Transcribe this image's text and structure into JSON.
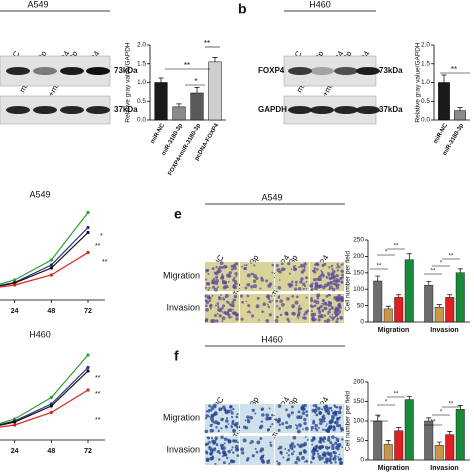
{
  "blots": [
    {
      "cell_line": "A549",
      "lanes": [
        [
          "miR-NC"
        ],
        [
          "miR-3180-3p"
        ],
        [
          "FOXP4",
          "+miR-3180-3p"
        ],
        [
          "FOXP4"
        ]
      ],
      "markers": [
        "73kDa",
        "37kDa"
      ]
    },
    {
      "label": "b",
      "cell_line": "H460",
      "lanes": [
        [
          "miR-NC"
        ],
        [
          "miR-3180-3p"
        ],
        [
          "FOXP4",
          "+miR-3180-3p"
        ],
        [
          "FOXP4"
        ]
      ],
      "proteins": [
        "FOXP4",
        "GAPDH"
      ],
      "markers": [
        "73kDa",
        "37kDa"
      ]
    }
  ],
  "micrographs": [
    {
      "label": "e",
      "cell_line": "A549",
      "columns": [
        [
          "miR-NC"
        ],
        [
          "miR-3180-3p"
        ],
        [
          "FOXP4",
          "+miR-3180-3p"
        ],
        [
          "FOXP4"
        ]
      ],
      "rows": [
        "Migration",
        "Invasion"
      ]
    },
    {
      "label": "f",
      "cell_line": "H460",
      "columns": [
        [
          "miR-NC"
        ],
        [
          "miR-3180-3p"
        ],
        [
          "FOXP4",
          "+miR-3180-3p"
        ],
        [
          "FOXP4"
        ]
      ],
      "rows": [
        "Migration",
        "Invasion"
      ]
    }
  ],
  "chart_data": [
    {
      "type": "bar",
      "ylabel": "Relative gray value/GAPDH",
      "categories": [
        "miR-NC",
        "miR-3180-3p",
        "FOXP4+miR-3180-3p",
        "pcDNA-FOXP4"
      ],
      "values": [
        1.0,
        0.35,
        0.72,
        1.55
      ],
      "errors": [
        0.12,
        0.08,
        0.15,
        0.12
      ],
      "colors": [
        "#1a1a1a",
        "#8a8a8a",
        "#5a5a5a",
        "#cfcfcf"
      ],
      "ylim": [
        0,
        2
      ],
      "yticks": [
        {
          "value": 0,
          "label": "0.0"
        },
        {
          "value": 0.5,
          "label": "0.5"
        },
        {
          "value": 1,
          "label": "1.0"
        },
        {
          "value": 1.5,
          "label": "1.5"
        },
        {
          "value": 2,
          "label": "2.0"
        }
      ],
      "annotations": [
        "**",
        "*",
        "**"
      ]
    },
    {
      "type": "bar",
      "ylabel": "Relative gray value/GAPDH",
      "categories": [
        "miR-NC",
        "miR-3180-3p"
      ],
      "values": [
        1.0,
        0.25
      ],
      "errors": [
        0.2,
        0.08
      ],
      "colors": [
        "#1a1a1a",
        "#8a8a8a"
      ],
      "ylim": [
        0,
        2
      ],
      "yticks": [
        {
          "value": 0,
          "label": "0.0"
        },
        {
          "value": 0.5,
          "label": "0.5"
        },
        {
          "value": 1,
          "label": "1.0"
        },
        {
          "value": 1.5,
          "label": "1.5"
        },
        {
          "value": 2,
          "label": "2.0"
        }
      ],
      "annotations": [
        "**"
      ]
    },
    {
      "type": "line",
      "title": "A549",
      "x": [
        0,
        24,
        48,
        72
      ],
      "xlim": [
        0,
        72
      ],
      "xticks": [
        24,
        48,
        72
      ],
      "ylim": [
        0,
        2
      ],
      "series": [
        {
          "color": "#2ca02c",
          "values": [
            0.2,
            0.4,
            0.8,
            1.75
          ]
        },
        {
          "color": "#2b2b8f",
          "values": [
            0.2,
            0.35,
            0.7,
            1.45
          ]
        },
        {
          "color": "#111111",
          "values": [
            0.2,
            0.34,
            0.64,
            1.35
          ]
        },
        {
          "color": "#e02020",
          "values": [
            0.2,
            0.3,
            0.5,
            0.95
          ]
        }
      ],
      "annotations": [
        "*",
        "**",
        "**"
      ]
    },
    {
      "type": "line",
      "title": "H460",
      "x": [
        0,
        24,
        48,
        72
      ],
      "xlim": [
        0,
        72
      ],
      "xticks": [
        24,
        48,
        72
      ],
      "ylim": [
        0,
        2
      ],
      "series": [
        {
          "color": "#2ca02c",
          "values": [
            0.2,
            0.42,
            0.85,
            1.7
          ]
        },
        {
          "color": "#2b2b8f",
          "values": [
            0.2,
            0.38,
            0.72,
            1.45
          ]
        },
        {
          "color": "#111111",
          "values": [
            0.2,
            0.36,
            0.68,
            1.38
          ]
        },
        {
          "color": "#e02020",
          "values": [
            0.2,
            0.3,
            0.55,
            1.0
          ]
        }
      ],
      "annotations": [
        "**",
        "**",
        "**"
      ]
    },
    {
      "type": "grouped-bar",
      "ylabel": "Cell number per field",
      "categories": [
        "Migration",
        "Invasion"
      ],
      "ylim": [
        0,
        250
      ],
      "yticks": [
        0,
        50,
        100,
        150,
        200,
        250
      ],
      "series": [
        {
          "color": "#6e6e6e",
          "values": [
            125,
            112
          ],
          "errors": [
            15,
            12
          ]
        },
        {
          "color": "#c8964b",
          "values": [
            40,
            45
          ],
          "errors": [
            8,
            8
          ]
        },
        {
          "color": "#e02020",
          "values": [
            75,
            75
          ],
          "errors": [
            8,
            8
          ]
        },
        {
          "color": "#1a8a3a",
          "values": [
            190,
            150
          ],
          "errors": [
            18,
            12
          ]
        }
      ],
      "annotations": [
        "**",
        "*",
        "**",
        "**",
        "*",
        "**"
      ]
    },
    {
      "type": "grouped-bar",
      "ylabel": "Cell number per field",
      "categories": [
        "Migration",
        "Invasion"
      ],
      "ylim": [
        0,
        200
      ],
      "yticks": [
        0,
        50,
        100,
        150,
        200
      ],
      "series": [
        {
          "color": "#6e6e6e",
          "values": [
            100,
            100
          ],
          "errors": [
            15,
            8
          ]
        },
        {
          "color": "#c8964b",
          "values": [
            40,
            38
          ],
          "errors": [
            10,
            8
          ]
        },
        {
          "color": "#e02020",
          "values": [
            75,
            65
          ],
          "errors": [
            8,
            8
          ]
        },
        {
          "color": "#1a8a3a",
          "values": [
            155,
            130
          ],
          "errors": [
            8,
            10
          ]
        }
      ],
      "annotations": [
        "*",
        "*",
        "**",
        "**",
        "*",
        "**"
      ]
    }
  ]
}
